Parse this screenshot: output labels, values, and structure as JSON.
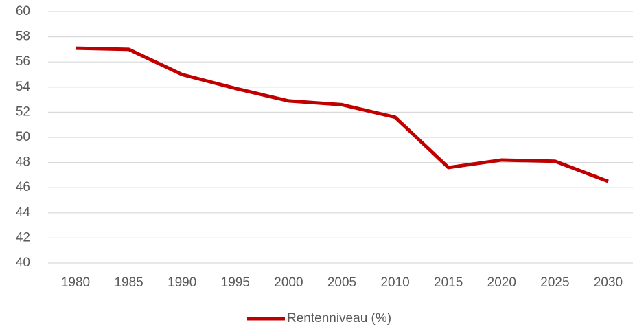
{
  "chart_data": {
    "type": "line",
    "categories": [
      "1980",
      "1985",
      "1990",
      "1995",
      "2000",
      "2005",
      "2010",
      "2015",
      "2020",
      "2025",
      "2030"
    ],
    "series": [
      {
        "name": "Rentenniveau (%)",
        "color": "#c00000",
        "values": [
          57.1,
          57.0,
          55.0,
          53.9,
          52.9,
          52.6,
          51.6,
          47.6,
          48.2,
          48.1,
          46.5
        ]
      }
    ],
    "ylim": [
      40,
      60
    ],
    "yticks": [
      40,
      42,
      44,
      46,
      48,
      50,
      52,
      54,
      56,
      58,
      60
    ],
    "grid": true,
    "legend": "bottom"
  }
}
